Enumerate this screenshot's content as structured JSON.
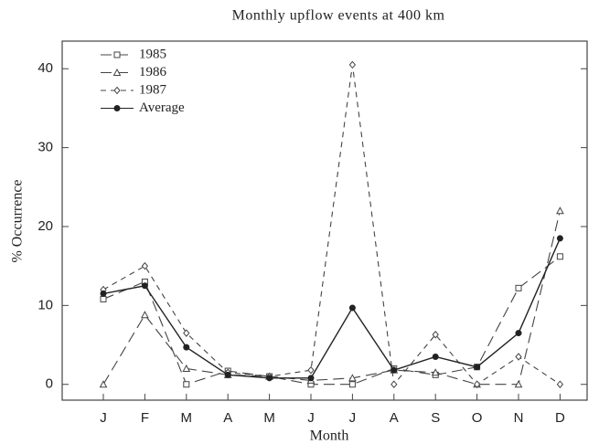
{
  "chart_data": {
    "type": "line",
    "title": "Monthly upflow events at 400 km",
    "x_label": "Month",
    "y_label": "% Occurrence",
    "categories": [
      "J",
      "F",
      "M",
      "A",
      "M",
      "J",
      "J",
      "A",
      "S",
      "O",
      "N",
      "D"
    ],
    "ylim": [
      -2,
      43.5
    ],
    "yticks": [
      0,
      10,
      20,
      30,
      40
    ],
    "legend": "upper-left",
    "series": [
      {
        "name": "1985",
        "color": "#444444",
        "marker": "square",
        "dash": "long",
        "values": [
          10.8,
          13,
          0,
          1.7,
          1,
          0,
          0,
          2,
          1.2,
          2.2,
          12.2,
          16.2
        ]
      },
      {
        "name": "1986",
        "color": "#444444",
        "marker": "triangle",
        "dash": "long",
        "values": [
          0,
          8.8,
          2,
          1.2,
          1,
          0.5,
          0.8,
          1.8,
          1.5,
          0,
          0,
          22
        ]
      },
      {
        "name": "1987",
        "color": "#444444",
        "marker": "diamond",
        "dash": "short",
        "values": [
          12,
          15,
          6.5,
          1.5,
          1,
          1.8,
          40.5,
          0,
          6.3,
          0,
          3.5,
          0
        ]
      },
      {
        "name": "Average",
        "color": "#222222",
        "marker": "circle",
        "dash": "solid",
        "values": [
          11.5,
          12.5,
          4.7,
          1.2,
          0.8,
          0.8,
          9.7,
          1.8,
          3.5,
          2.2,
          6.5,
          18.5
        ]
      }
    ]
  }
}
